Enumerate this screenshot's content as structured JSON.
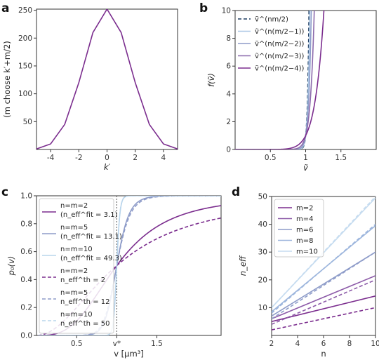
{
  "panel_labels": [
    "a",
    "b",
    "c",
    "d"
  ],
  "chart_data": [
    {
      "id": "a",
      "type": "line",
      "xlabel": "k′",
      "ylabel": "(m choose k′+m/2)",
      "xlim": [
        -5,
        5
      ],
      "ylim": [
        0,
        252
      ],
      "xticks": [
        -4,
        -2,
        0,
        2,
        4
      ],
      "yticks": [
        50,
        100,
        150,
        200,
        250
      ],
      "color": "#7b2d8e",
      "x": [
        -5,
        -4,
        -3,
        -2,
        -1,
        0,
        1,
        2,
        3,
        4,
        5
      ],
      "y": [
        1,
        10,
        45,
        120,
        210,
        252,
        210,
        120,
        45,
        10,
        1
      ]
    },
    {
      "id": "b",
      "type": "line",
      "xlabel": "ṽ",
      "ylabel": "f(ṽ)",
      "xlim": [
        0,
        2
      ],
      "ylim": [
        0,
        10
      ],
      "xticks": [
        0.5,
        1.0,
        1.5
      ],
      "yticks": [
        0,
        2,
        4,
        6,
        8,
        10
      ],
      "legend_position": "top-left",
      "series": [
        {
          "name": "ṽ^(nm/2)",
          "exponent": 50,
          "dash": true,
          "color": "#1d3b60"
        },
        {
          "name": "ṽ^(n(m/2−1))",
          "exponent": 40,
          "dash": false,
          "color": "#a9c6e4"
        },
        {
          "name": "ṽ^(n(m/2−2))",
          "exponent": 30,
          "dash": false,
          "color": "#8e9cc9"
        },
        {
          "name": "ṽ^(n(m/2−3))",
          "exponent": 20,
          "dash": false,
          "color": "#8c6aac"
        },
        {
          "name": "ṽ^(n(m/2−4))",
          "exponent": 10,
          "dash": false,
          "color": "#7b2d8e"
        }
      ]
    },
    {
      "id": "c",
      "type": "line",
      "xlabel": "v [μm³]",
      "ylabel": "p₀(v)",
      "xlim": [
        0,
        2.3
      ],
      "ylim": [
        0,
        1
      ],
      "xticks": [
        0.5,
        1.0,
        1.5
      ],
      "xtick_labels": [
        "0.5",
        "v*",
        "1.5"
      ],
      "yticks": [
        0.0,
        0.2,
        0.4,
        0.6,
        0.8,
        1.0
      ],
      "vline_x": 1.0,
      "legend_position": "left",
      "series": [
        {
          "name": "n=m=2",
          "sub": "(n_eff^fit = 3.1)",
          "k": 3.1,
          "dash": false,
          "color": "#7b2d8e"
        },
        {
          "name": "n=m=5",
          "sub": "(n_eff^fit = 13.1)",
          "k": 13.1,
          "dash": false,
          "color": "#8e9cc9"
        },
        {
          "name": "n=m=10",
          "sub": "(n_eff^fit = 49.3)",
          "k": 49.3,
          "dash": false,
          "color": "#b9d5ec"
        },
        {
          "name": "n=m=2",
          "sub": "n_eff^th = 2",
          "k": 2,
          "dash": true,
          "color": "#7b2d8e"
        },
        {
          "name": "n=m=5",
          "sub": "n_eff^th = 12",
          "k": 12,
          "dash": true,
          "color": "#8e9cc9"
        },
        {
          "name": "n=m=10",
          "sub": "n_eff^th = 50",
          "k": 50,
          "dash": true,
          "color": "#b9d5ec"
        }
      ]
    },
    {
      "id": "d",
      "type": "line",
      "xlabel": "n",
      "ylabel": "n_eff",
      "xlim": [
        2,
        10
      ],
      "ylim": [
        0,
        50
      ],
      "xticks": [
        2,
        4,
        6,
        8,
        10
      ],
      "yticks": [
        10,
        20,
        30,
        40,
        50
      ],
      "legend_position": "top-left",
      "series": [
        {
          "name": "m=2",
          "solid_y": [
            5,
            14.2
          ],
          "dashed_y": [
            2,
            10
          ],
          "color": "#7b2d8e"
        },
        {
          "name": "m=4",
          "solid_y": [
            6,
            21.5
          ],
          "dashed_y": [
            4,
            20
          ],
          "color": "#8c5aa8"
        },
        {
          "name": "m=6",
          "solid_y": [
            7,
            30
          ],
          "dashed_y": [
            6,
            30
          ],
          "color": "#8e9cc9"
        },
        {
          "name": "m=8",
          "solid_y": [
            8.5,
            39.5
          ],
          "dashed_y": [
            8,
            40
          ],
          "color": "#9db6dd"
        },
        {
          "name": "m=10",
          "solid_y": [
            10,
            49.5
          ],
          "dashed_y": [
            10,
            50
          ],
          "color": "#c6dcf0"
        }
      ]
    }
  ]
}
